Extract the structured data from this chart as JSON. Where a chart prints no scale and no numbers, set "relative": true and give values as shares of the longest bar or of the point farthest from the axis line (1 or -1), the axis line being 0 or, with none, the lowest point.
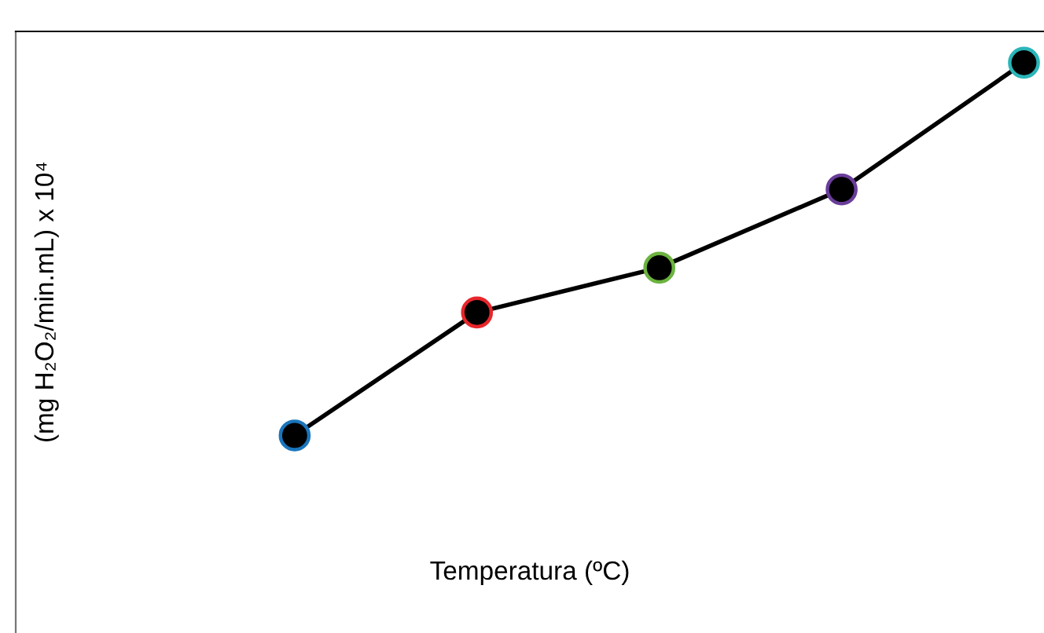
{
  "chart_data": {
    "type": "line",
    "relative": true,
    "annotations": [
      "(mg H₂O₂/min.mL) x 10⁴",
      "Temperatura (ºC)"
    ],
    "categories": [
      null,
      null,
      null,
      null,
      null
    ],
    "marker": "circle",
    "line_style": "solid",
    "legend": false,
    "series": [
      {
        "color": "#000000",
        "colors": [
          "#1a75bc",
          "#e8262b",
          "#6bb33f",
          "#6a3d9a",
          "#2bb5b8"
        ],
        "values": [
          0,
          0.33,
          0.45,
          0.66,
          1.0
        ]
      }
    ]
  }
}
